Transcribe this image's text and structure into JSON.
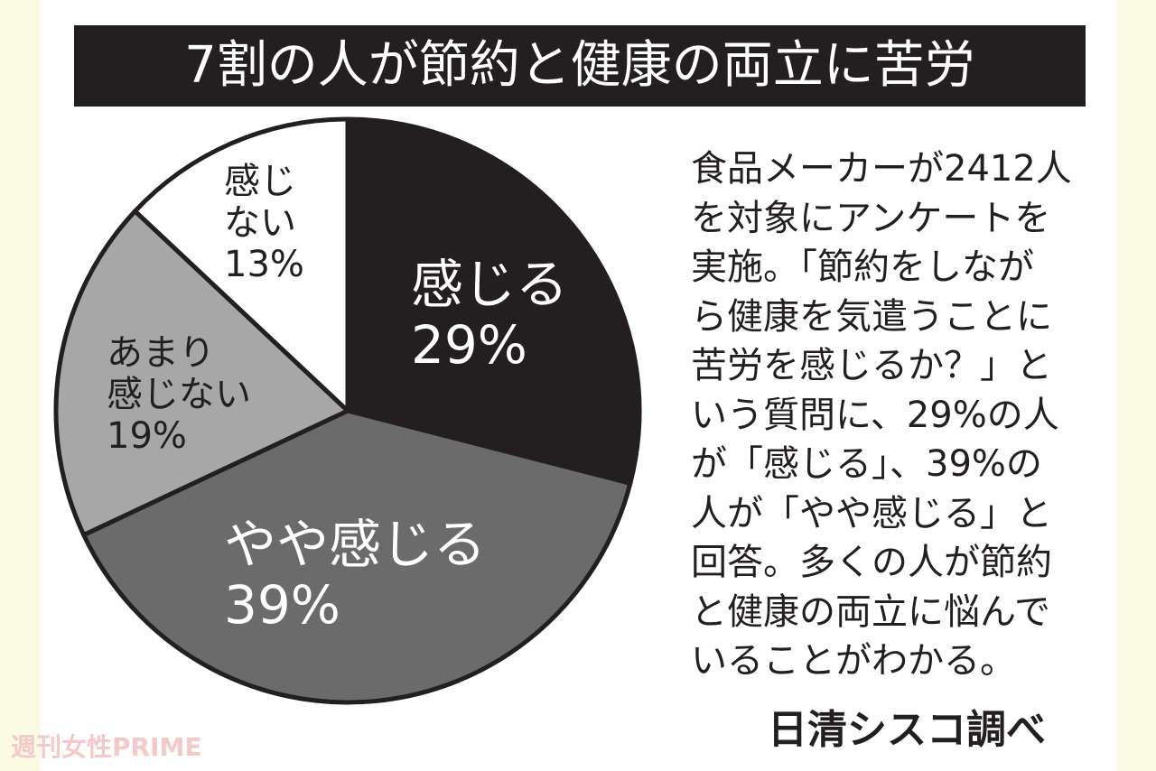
{
  "chart_data": {
    "type": "pie",
    "title": "7割の人が節約と健康の両立に苦労",
    "categories": [
      "感じる",
      "やや感じる",
      "あまり\n感じない",
      "感じ\nない"
    ],
    "values": [
      29,
      39,
      19,
      13
    ],
    "value_labels": [
      "29%",
      "39%",
      "19%",
      "13%"
    ],
    "colors": [
      "#231f20",
      "#6b6b6b",
      "#a7a7a7",
      "#ffffff"
    ],
    "label_colors": [
      "#ffffff",
      "#ffffff",
      "#231f20",
      "#231f20"
    ],
    "description": "食品メーカーが2412人\nを対象にアンケートを\n実施。「節約をしなが\nら健康を気遣うことに\n苦労を感じるか？」と\nいう質問に、29%の人\nが「感じる」、39%の\n人が「やや感じる」と\n回答。多くの人が節約\nと健康の両立に悩んで\nいることがわかる。",
    "source": "日清シスコ調べ"
  },
  "watermark": "週刊女性PRIME"
}
